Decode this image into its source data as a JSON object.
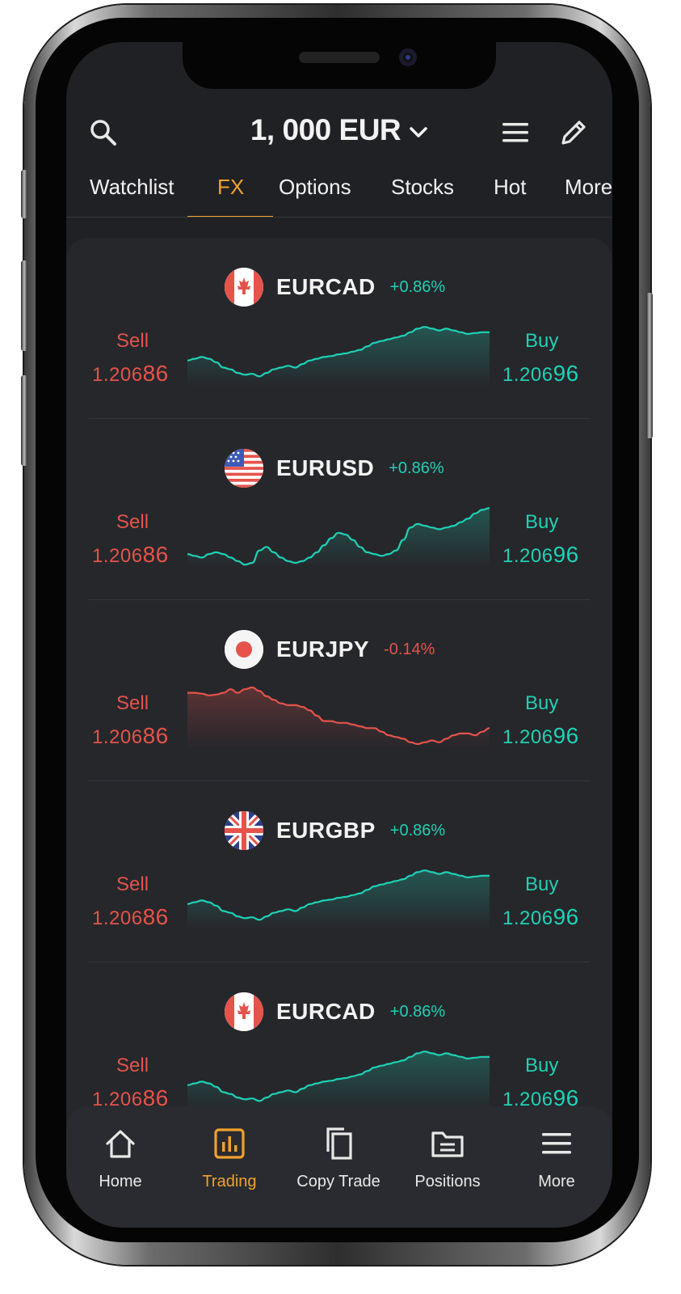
{
  "colors": {
    "accent": "#f0a22e",
    "up": "#1fd1b5",
    "down": "#e5534b",
    "background": "#202125",
    "card": "#26272b"
  },
  "header": {
    "balance": "1, 000 EUR",
    "icons": [
      "search-icon",
      "chevron-down-icon",
      "hamburger-menu-icon",
      "edit-pencil-icon"
    ]
  },
  "tabs": [
    {
      "label": "Watchlist"
    },
    {
      "label": "FX",
      "active": true
    },
    {
      "label": "Options"
    },
    {
      "label": "Stocks"
    },
    {
      "label": "Hot"
    },
    {
      "label": "More"
    }
  ],
  "instruments": [
    {
      "pair": "EURCAD",
      "flag": "canada-flag-icon",
      "change": "+0.86%",
      "trend": "up",
      "sell_label": "Sell",
      "sell_price_main": "1.206",
      "sell_price_big": "86",
      "buy_label": "Buy",
      "buy_price_main": "1.206",
      "buy_price_big": "96",
      "spark": [
        40,
        38,
        36,
        38,
        42,
        48,
        50,
        54,
        56,
        55,
        58,
        54,
        50,
        48,
        46,
        48,
        44,
        40,
        38,
        36,
        35,
        33,
        32,
        30,
        28,
        24,
        20,
        18,
        16,
        14,
        12,
        8,
        4,
        2,
        4,
        6,
        4,
        6,
        8,
        10,
        9,
        8,
        8
      ]
    },
    {
      "pair": "EURUSD",
      "flag": "usa-flag-icon",
      "change": "+0.86%",
      "trend": "up",
      "sell_label": "Sell",
      "sell_price_main": "1.206",
      "sell_price_big": "86",
      "buy_label": "Buy",
      "buy_price_main": "1.206",
      "buy_price_big": "96",
      "spark": [
        54,
        56,
        58,
        54,
        52,
        54,
        58,
        62,
        66,
        64,
        50,
        46,
        52,
        58,
        62,
        64,
        62,
        58,
        52,
        44,
        36,
        30,
        32,
        38,
        46,
        52,
        54,
        56,
        54,
        50,
        38,
        24,
        20,
        22,
        24,
        26,
        24,
        22,
        18,
        14,
        8,
        4,
        2
      ]
    },
    {
      "pair": "EURJPY",
      "flag": "japan-flag-icon",
      "change": "-0.14%",
      "trend": "down",
      "sell_label": "Sell",
      "sell_price_main": "1.206",
      "sell_price_big": "86",
      "buy_label": "Buy",
      "buy_price_main": "1.206",
      "buy_price_big": "96",
      "spark": [
        6,
        6,
        7,
        9,
        8,
        6,
        2,
        6,
        2,
        0,
        4,
        10,
        14,
        18,
        20,
        20,
        22,
        26,
        32,
        38,
        38,
        40,
        40,
        42,
        44,
        46,
        46,
        50,
        54,
        56,
        58,
        62,
        64,
        62,
        60,
        62,
        58,
        54,
        52,
        52,
        54,
        50,
        46
      ]
    },
    {
      "pair": "EURGBP",
      "flag": "uk-flag-icon",
      "change": "+0.86%",
      "trend": "up",
      "sell_label": "Sell",
      "sell_price_main": "1.206",
      "sell_price_big": "86",
      "buy_label": "Buy",
      "buy_price_main": "1.206",
      "buy_price_big": "96",
      "spark": [
        40,
        38,
        36,
        38,
        42,
        48,
        50,
        54,
        56,
        55,
        58,
        54,
        50,
        48,
        46,
        48,
        44,
        40,
        38,
        36,
        35,
        33,
        32,
        30,
        28,
        24,
        20,
        18,
        16,
        14,
        12,
        8,
        4,
        2,
        4,
        6,
        4,
        6,
        8,
        10,
        9,
        8,
        8
      ]
    },
    {
      "pair": "EURCAD",
      "flag": "canada-flag-icon",
      "change": "+0.86%",
      "trend": "up",
      "sell_label": "Sell",
      "sell_price_main": "1.206",
      "sell_price_big": "86",
      "buy_label": "Buy",
      "buy_price_main": "1.206",
      "buy_price_big": "96",
      "spark": [
        40,
        38,
        36,
        38,
        42,
        48,
        50,
        54,
        56,
        55,
        58,
        54,
        50,
        48,
        46,
        48,
        44,
        40,
        38,
        36,
        35,
        33,
        32,
        30,
        28,
        24,
        20,
        18,
        16,
        14,
        12,
        8,
        4,
        2,
        4,
        6,
        4,
        6,
        8,
        10,
        9,
        8,
        8
      ]
    }
  ],
  "bottom_nav": [
    {
      "label": "Home",
      "icon": "home-icon"
    },
    {
      "label": "Trading",
      "icon": "trading-chart-icon",
      "active": true
    },
    {
      "label": "Copy Trade",
      "icon": "copy-icon"
    },
    {
      "label": "Positions",
      "icon": "folder-icon"
    },
    {
      "label": "More",
      "icon": "menu-icon"
    }
  ]
}
